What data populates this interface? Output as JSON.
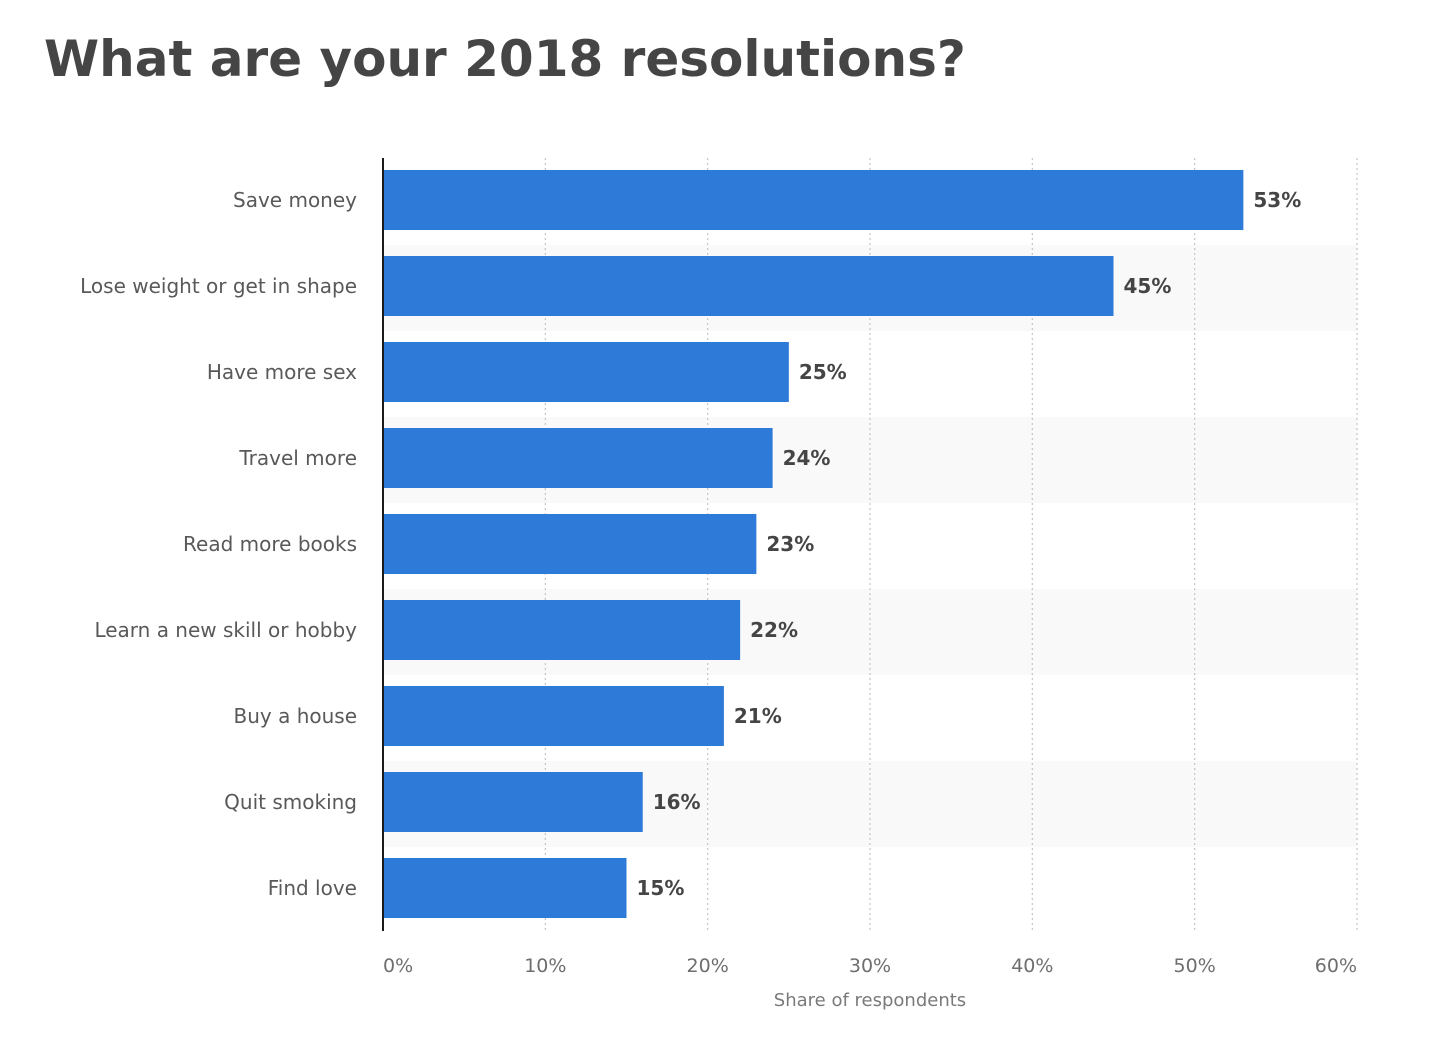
{
  "chart_data": {
    "type": "bar",
    "orientation": "horizontal",
    "title": "What are your 2018 resolutions?",
    "xlabel": "Share of respondents",
    "ylabel": "",
    "categories": [
      "Save money",
      "Lose weight or get in shape",
      "Have more sex",
      "Travel more",
      "Read more books",
      "Learn a new skill or hobby",
      "Buy a house",
      "Quit smoking",
      "Find love"
    ],
    "values": [
      53,
      45,
      25,
      24,
      23,
      22,
      21,
      16,
      15
    ],
    "value_labels": [
      "53%",
      "45%",
      "25%",
      "24%",
      "23%",
      "22%",
      "21%",
      "16%",
      "15%"
    ],
    "xlim": [
      0,
      60
    ],
    "ticks": [
      0,
      10,
      20,
      30,
      40,
      50,
      60
    ],
    "tick_labels": [
      "0%",
      "10%",
      "20%",
      "30%",
      "40%",
      "50%",
      "60%"
    ],
    "grid": true,
    "legend": "none",
    "bar_color": "#2d7ad9"
  }
}
